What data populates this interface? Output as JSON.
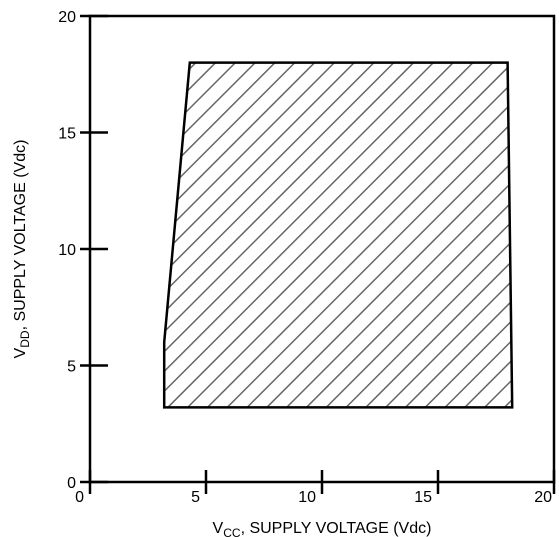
{
  "chart_data": {
    "type": "area",
    "xlabel": {
      "main": "V",
      "sub": "CC",
      "rest": ", SUPPLY VOLTAGE (Vdc)"
    },
    "ylabel": {
      "main": "V",
      "sub": "DD",
      "rest": ", SUPPLY VOLTAGE (Vdc)"
    },
    "xlim": [
      0,
      20
    ],
    "ylim": [
      0,
      20
    ],
    "xticks": [
      0,
      5,
      10,
      15,
      20
    ],
    "yticks": [
      0,
      5,
      10,
      15,
      20
    ],
    "xtick_labels": [
      "0",
      "5",
      "10",
      "15",
      "20"
    ],
    "ytick_labels": [
      "0",
      "5",
      "10",
      "15",
      "20"
    ],
    "grid": false,
    "region": {
      "fill": "hatched",
      "points": [
        {
          "x": 3.2,
          "y": 3.2
        },
        {
          "x": 3.2,
          "y": 6.0
        },
        {
          "x": 4.3,
          "y": 18.0
        },
        {
          "x": 18.0,
          "y": 18.0
        },
        {
          "x": 18.2,
          "y": 3.2
        }
      ]
    },
    "colors": {
      "line": "#000000",
      "hatch": "#666666",
      "background": "#ffffff"
    }
  }
}
